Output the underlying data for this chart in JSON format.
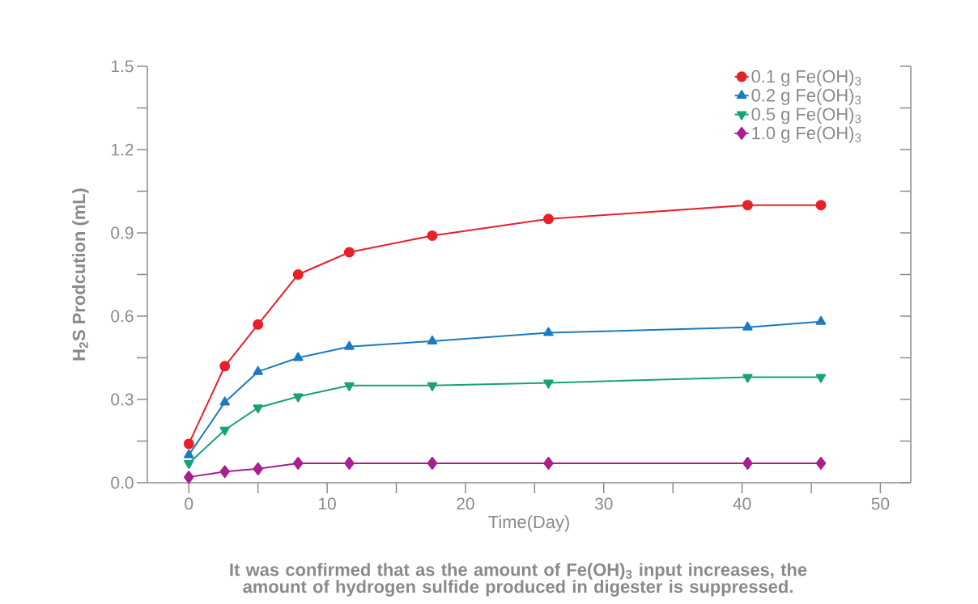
{
  "chart_data": {
    "type": "line",
    "ylabel": "H$_{2}$S Prodcution (mL)",
    "xlabel": "Time(Day)",
    "x": [
      0,
      2.6,
      5,
      7.9,
      11.6,
      17.6,
      26,
      40.4,
      45.7
    ],
    "series": [
      {
        "name": "0.1 g Fe(OH)$_{3}$",
        "color": "#e8202a",
        "marker": "circle",
        "values": [
          0.14,
          0.42,
          0.57,
          0.75,
          0.83,
          0.89,
          0.95,
          1.0,
          1.0
        ]
      },
      {
        "name": "0.2 g Fe(OH)$_{3}$",
        "color": "#1a7ac4",
        "marker": "triangle",
        "values": [
          0.1,
          0.29,
          0.4,
          0.45,
          0.49,
          0.51,
          0.54,
          0.56,
          0.58
        ]
      },
      {
        "name": "0.5 g Fe(OH)$_{3}$",
        "color": "#16a37a",
        "marker": "triangle_down",
        "values": [
          0.07,
          0.19,
          0.27,
          0.31,
          0.35,
          0.35,
          0.36,
          0.38,
          0.38
        ]
      },
      {
        "name": "1.0 g Fe(OH)$_{3}$",
        "color": "#a8208f",
        "marker": "diamond",
        "values": [
          0.02,
          0.04,
          0.05,
          0.07,
          0.07,
          0.07,
          0.07,
          0.07,
          0.07
        ]
      }
    ],
    "xlim": [
      -3,
      52.2
    ],
    "ylim": [
      0,
      1.5
    ],
    "xticks": [
      0,
      {
        "value": 5,
        "label": null
      },
      10,
      {
        "value": 15,
        "label": null
      },
      20,
      {
        "value": 25,
        "label": null
      },
      30,
      {
        "value": 35,
        "label": null
      },
      40,
      {
        "value": 45,
        "label": null
      },
      50
    ],
    "yticks": [
      {
        "value": 0,
        "label": "0.0"
      },
      {
        "value": 0.15,
        "label": null
      },
      {
        "value": 0.3,
        "label": "0.3"
      },
      {
        "value": 0.45,
        "label": null
      },
      {
        "value": 0.6,
        "label": "0.6"
      },
      {
        "value": 0.75,
        "label": null
      },
      {
        "value": 0.9,
        "label": "0.9"
      },
      {
        "value": 1.05,
        "label": null
      },
      {
        "value": 1.2,
        "label": "1.2"
      },
      {
        "value": 1.35,
        "label": null
      },
      {
        "value": 1.5,
        "label": "1.5"
      }
    ],
    "grid": false,
    "legend": "top right",
    "line_style": "solid",
    "annotations": [
      "It was confirmed that as the amount of Fe(OH)$_{3}$ input increases, the amount of hydrogen sulfide produced in digester is suppressed."
    ]
  }
}
